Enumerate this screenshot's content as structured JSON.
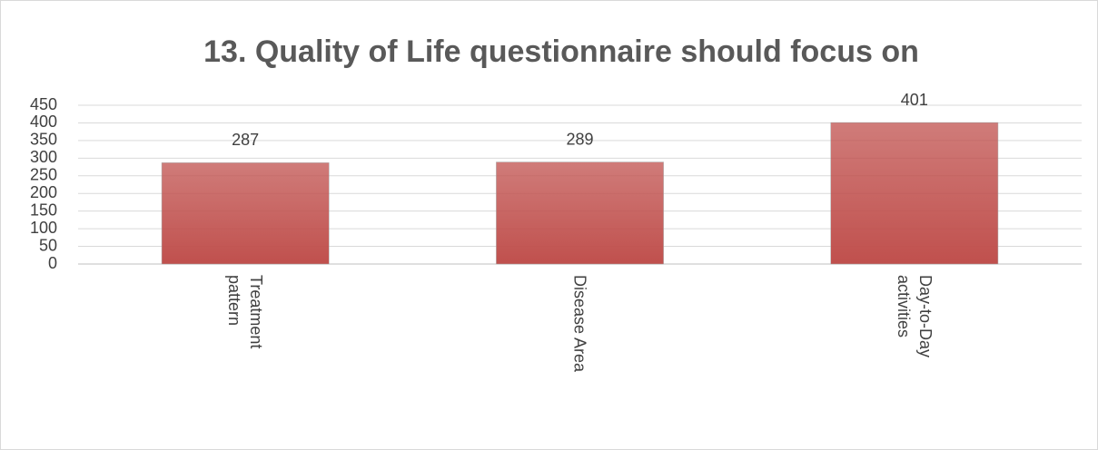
{
  "chart_data": {
    "type": "bar",
    "title": "13. Quality of Life questionnaire should focus on",
    "categories": [
      "Treatment pattern",
      "Disease Area",
      "Day-to-Day activities"
    ],
    "values": [
      287,
      289,
      401
    ],
    "color": "#c0504d",
    "ylim": [
      0,
      450
    ],
    "yticks": [
      0,
      50,
      100,
      150,
      200,
      250,
      300,
      350,
      400,
      450
    ],
    "grid": true
  }
}
